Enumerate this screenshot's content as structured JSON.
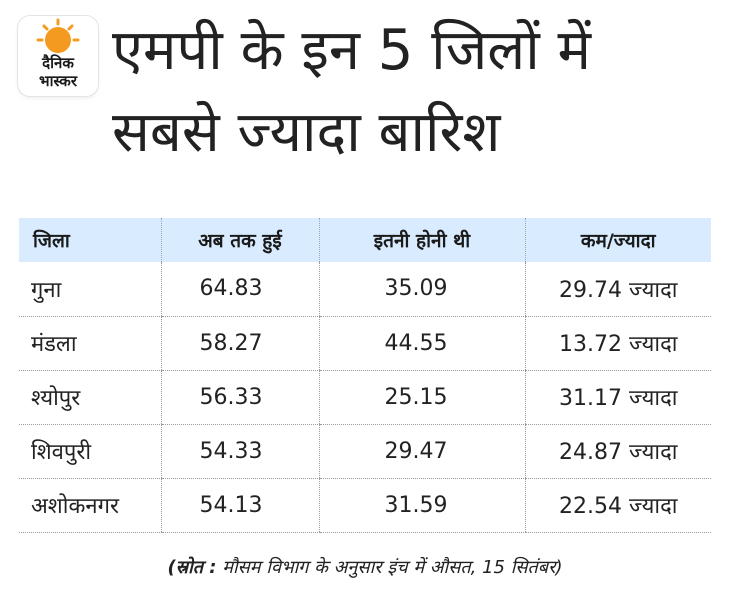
{
  "brand": {
    "logo_line1": "दैनिक",
    "logo_line2": "भास्कर",
    "accent": "#f39a1f"
  },
  "title": "एमपी के इन 5 जिलों में\nसबसे ज्यादा बारिश",
  "table": {
    "headers": [
      "जिला",
      "अब तक हुई",
      "इतनी होनी थी",
      "कम/ज्यादा"
    ],
    "rows": [
      {
        "district": "गुना",
        "actual": "64.83",
        "expected": "35.09",
        "diff": "29.74 ज्यादा"
      },
      {
        "district": "मंडला",
        "actual": "58.27",
        "expected": "44.55",
        "diff": "13.72 ज्यादा"
      },
      {
        "district": "श्योपुर",
        "actual": "56.33",
        "expected": "25.15",
        "diff": "31.17 ज्यादा"
      },
      {
        "district": "शिवपुरी",
        "actual": "54.33",
        "expected": "29.47",
        "diff": "24.87 ज्यादा"
      },
      {
        "district": "अशोकनगर",
        "actual": "54.13",
        "expected": "31.59",
        "diff": "22.54 ज्यादा"
      }
    ],
    "header_bg": "#d9ecff"
  },
  "footnote": {
    "source_label": "(स्रोत :",
    "text": " मौसम विभाग के अनुसार इंच में औसत, 15 सितंबर)"
  }
}
